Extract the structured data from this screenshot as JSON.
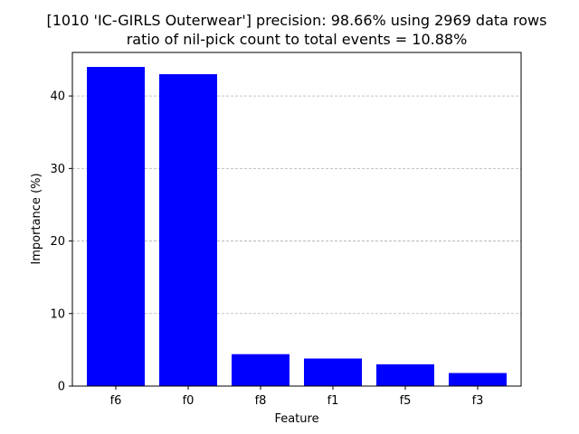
{
  "chart_data": {
    "type": "bar",
    "title_line1": "[1010 'IC-GIRLS Outerwear'] precision: 98.66% using 2969 data rows",
    "title_line2": "ratio of nil-pick count to total events = 10.88%",
    "xlabel": "Feature",
    "ylabel": "Importance (%)",
    "categories": [
      "f6",
      "f0",
      "f8",
      "f1",
      "f5",
      "f3"
    ],
    "values": [
      44.0,
      43.0,
      4.4,
      3.8,
      3.0,
      1.8
    ],
    "ylim": [
      0,
      46
    ],
    "yticks": [
      0,
      10,
      20,
      30,
      40
    ],
    "grid": "y-dashed",
    "bar_color": "#0000ff"
  }
}
